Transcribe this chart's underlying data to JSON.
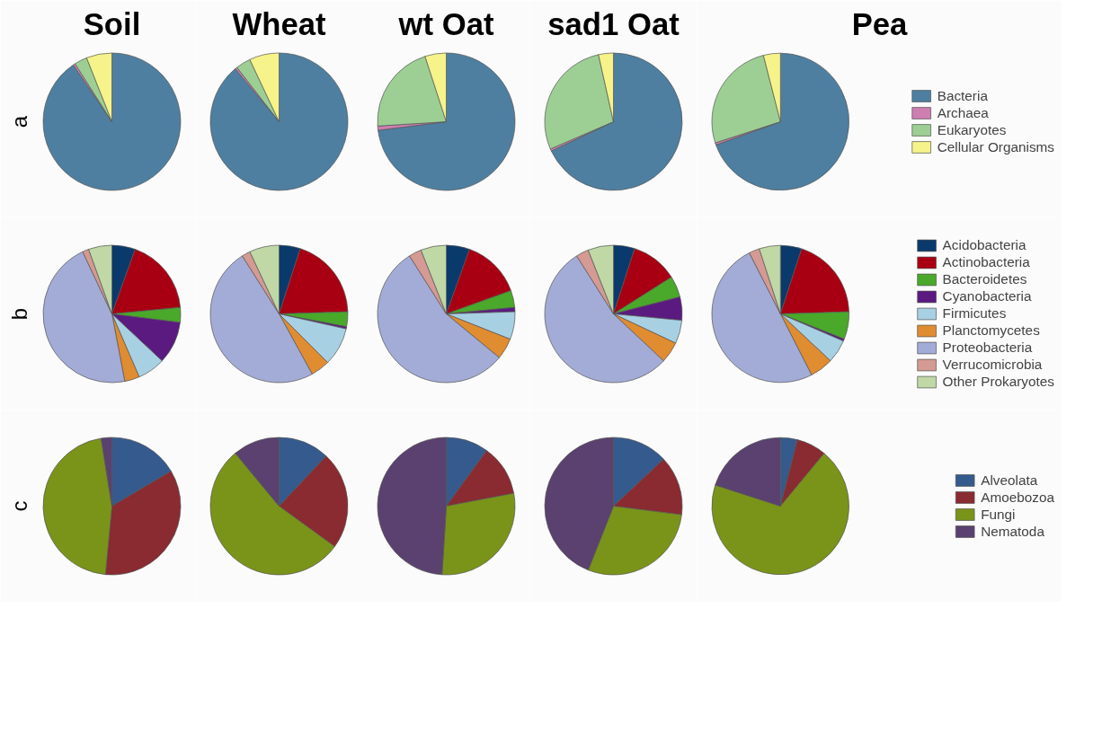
{
  "chart_data": [
    {
      "type": "pie",
      "ylabel": "a",
      "legend": "right",
      "categories": [
        "Bacteria",
        "Archaea",
        "Eukaryotes",
        "Cellular Organisms"
      ],
      "colors": [
        "#4e7fa0",
        "#cc7fb0",
        "#9dcf95",
        "#f5f38a"
      ],
      "series": [
        {
          "name": "Soil",
          "values": [
            90.5,
            0.5,
            3,
            6
          ]
        },
        {
          "name": "Wheat",
          "values": [
            89,
            0.5,
            3.5,
            7
          ]
        },
        {
          "name": "wt Oat",
          "values": [
            73,
            1,
            21,
            5
          ]
        },
        {
          "name": "sad1 Oat",
          "values": [
            68,
            0.5,
            28,
            3.5
          ]
        },
        {
          "name": "Pea",
          "values": [
            69.5,
            0.5,
            26,
            4
          ]
        }
      ]
    },
    {
      "type": "pie",
      "ylabel": "b",
      "legend": "right",
      "categories": [
        "Acidobacteria",
        "Actinobacteria",
        "Bacteroidetes",
        "Cyanobacteria",
        "Firmicutes",
        "Planctomycetes",
        "Proteobacteria",
        "Verrucomicrobia",
        "Other Prokaryotes"
      ],
      "colors": [
        "#0a3a6b",
        "#a80012",
        "#4aa82a",
        "#5b1a80",
        "#a8d0e3",
        "#e08c30",
        "#a3acd6",
        "#d49a93",
        "#bfd8a6"
      ],
      "series": [
        {
          "values": [
            5.5,
            18,
            3.5,
            10,
            6.5,
            3.5,
            46,
            1.5,
            5.5
          ]
        },
        {
          "values": [
            5,
            19.5,
            3.5,
            0.5,
            9,
            4.5,
            49,
            2,
            7
          ]
        },
        {
          "values": [
            5.5,
            14,
            4,
            1,
            6.5,
            5,
            55,
            3,
            6
          ]
        },
        {
          "values": [
            5,
            11,
            5,
            5.5,
            5.5,
            5,
            54,
            3,
            6
          ]
        },
        {
          "values": [
            5,
            19.5,
            6.5,
            0.5,
            5.5,
            5.5,
            50,
            2.5,
            5
          ]
        }
      ]
    },
    {
      "type": "pie",
      "ylabel": "c",
      "legend": "right",
      "categories": [
        "Alveolata",
        "Amoebozoa",
        "Fungi",
        "Nematoda"
      ],
      "colors": [
        "#355a8e",
        "#8a2a31",
        "#7a9419",
        "#5a416f"
      ],
      "series": [
        {
          "values": [
            16.5,
            35,
            46,
            2.5
          ]
        },
        {
          "values": [
            12,
            23,
            54,
            11
          ]
        },
        {
          "values": [
            10,
            12,
            29,
            49
          ]
        },
        {
          "values": [
            13,
            14,
            29,
            44
          ]
        },
        {
          "values": [
            4,
            7,
            69,
            20
          ]
        }
      ]
    }
  ]
}
